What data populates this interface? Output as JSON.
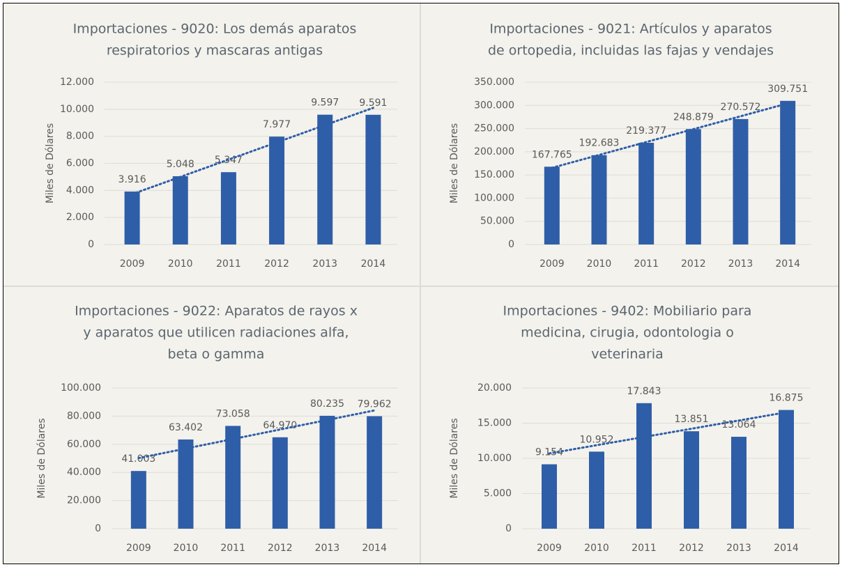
{
  "chart_data": [
    {
      "type": "bar",
      "title": [
        "Importaciones - 9020: Los demás aparatos",
        "respiratorios y mascaras antigas"
      ],
      "y_label": "Miles de Dólares",
      "categories": [
        "2009",
        "2010",
        "2011",
        "2012",
        "2013",
        "2014"
      ],
      "values": [
        3916,
        5048,
        5347,
        7977,
        9597,
        9591
      ],
      "value_labels": [
        "3.916",
        "5.048",
        "5.347",
        "7.977",
        "9.597",
        "9.591"
      ],
      "color": "#2f5ea8",
      "ylim": [
        0,
        12000
      ],
      "yticks": [
        0,
        {
          "value": 2000,
          "label": "2.000"
        },
        {
          "value": 4000,
          "label": "4.000"
        },
        {
          "value": 6000,
          "label": "6.000"
        },
        {
          "value": 8000,
          "label": "8.000"
        },
        {
          "value": 10000,
          "label": "10.000"
        },
        {
          "value": 12000,
          "label": "12.000"
        }
      ],
      "grid": true,
      "trendline": "linear"
    },
    {
      "type": "bar",
      "title": [
        "Importaciones - 9021: Artículos y aparatos",
        "de ortopedia, incluidas las fajas y vendajes"
      ],
      "y_label": "Miles de Dólares",
      "categories": [
        "2009",
        "2010",
        "2011",
        "2012",
        "2013",
        "2014"
      ],
      "values": [
        167765,
        192683,
        219377,
        248879,
        270572,
        309751
      ],
      "value_labels": [
        "167.765",
        "192.683",
        "219.377",
        "248.879",
        "270.572",
        "309.751"
      ],
      "color": "#2f5ea8",
      "ylim": [
        0,
        350000
      ],
      "yticks": [
        0,
        {
          "value": 50000,
          "label": "50.000"
        },
        {
          "value": 100000,
          "label": "100.000"
        },
        {
          "value": 150000,
          "label": "150.000"
        },
        {
          "value": 200000,
          "label": "200.000"
        },
        {
          "value": 250000,
          "label": "250.000"
        },
        {
          "value": 300000,
          "label": "300.000"
        },
        {
          "value": 350000,
          "label": "350.000"
        }
      ],
      "grid": true,
      "trendline": "linear"
    },
    {
      "type": "bar",
      "title": [
        "Importaciones - 9022: Aparatos de rayos x",
        "y aparatos que utilicen radiaciones alfa,",
        "beta o gamma"
      ],
      "y_label": "Miles de Dólares",
      "categories": [
        "2009",
        "2010",
        "2011",
        "2012",
        "2013",
        "2014"
      ],
      "values": [
        41003,
        63402,
        73058,
        64970,
        80235,
        79962
      ],
      "value_labels": [
        "41.003",
        "63.402",
        "73.058",
        "64.970",
        "80.235",
        "79.962"
      ],
      "color": "#2f5ea8",
      "ylim": [
        0,
        100000
      ],
      "yticks": [
        0,
        {
          "value": 20000,
          "label": "20.000"
        },
        {
          "value": 40000,
          "label": "40.000"
        },
        {
          "value": 60000,
          "label": "60.000"
        },
        {
          "value": 80000,
          "label": "80.000"
        },
        {
          "value": 100000,
          "label": "100.000"
        }
      ],
      "grid": true,
      "trendline": "linear"
    },
    {
      "type": "bar",
      "title": [
        "Importaciones - 9402: Mobiliario para",
        "medicina, cirugia, odontologia o",
        "veterinaria"
      ],
      "y_label": "Miles de Dólares",
      "categories": [
        "2009",
        "2010",
        "2011",
        "2012",
        "2013",
        "2014"
      ],
      "values": [
        9154,
        10952,
        17843,
        13851,
        13064,
        16875
      ],
      "value_labels": [
        "9.154",
        "10.952",
        "17.843",
        "13.851",
        "13.064",
        "16.875"
      ],
      "color": "#2f5ea8",
      "ylim": [
        0,
        20000
      ],
      "yticks": [
        0,
        {
          "value": 5000,
          "label": "5.000"
        },
        {
          "value": 10000,
          "label": "10.000"
        },
        {
          "value": 15000,
          "label": "15.000"
        },
        {
          "value": 20000,
          "label": "20.000"
        }
      ],
      "grid": true,
      "trendline": "linear"
    }
  ]
}
